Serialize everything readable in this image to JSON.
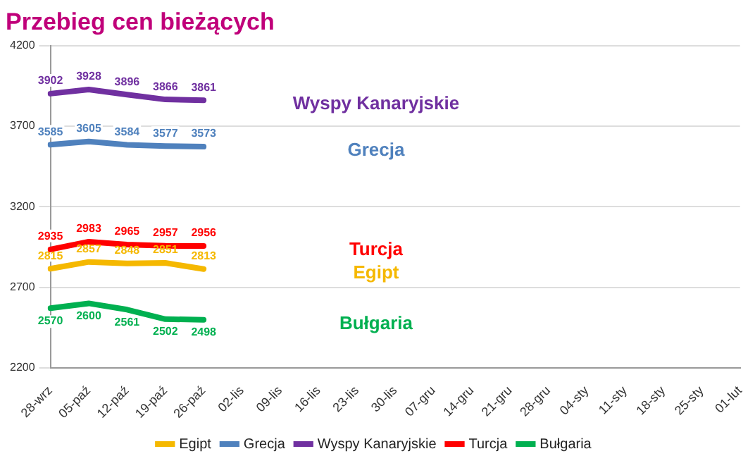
{
  "chart_data": {
    "type": "line",
    "title": "Przebieg cen bieżących",
    "categories": [
      "28-wrz",
      "05-paź",
      "12-paź",
      "19-paź",
      "26-paź",
      "02-lis",
      "09-lis",
      "16-lis",
      "23-lis",
      "30-lis",
      "07-gru",
      "14-gru",
      "21-gru",
      "28-gru",
      "04-sty",
      "11-sty",
      "18-sty",
      "25-sty",
      "01-lut"
    ],
    "series": [
      {
        "name": "Egipt",
        "color": "#f5b800",
        "values": [
          2815,
          2857,
          2848,
          2851,
          2813,
          null,
          null,
          null,
          null,
          null,
          null,
          null,
          null,
          null,
          null,
          null,
          null,
          null,
          null
        ]
      },
      {
        "name": "Grecja",
        "color": "#4f81bd",
        "values": [
          3585,
          3605,
          3584,
          3577,
          3573,
          null,
          null,
          null,
          null,
          null,
          null,
          null,
          null,
          null,
          null,
          null,
          null,
          null,
          null
        ]
      },
      {
        "name": "Wyspy Kanaryjskie",
        "color": "#7030a0",
        "values": [
          3902,
          3928,
          3896,
          3866,
          3861,
          null,
          null,
          null,
          null,
          null,
          null,
          null,
          null,
          null,
          null,
          null,
          null,
          null,
          null
        ]
      },
      {
        "name": "Turcja",
        "color": "#ff0000",
        "values": [
          2935,
          2983,
          2965,
          2957,
          2956,
          null,
          null,
          null,
          null,
          null,
          null,
          null,
          null,
          null,
          null,
          null,
          null,
          null,
          null
        ]
      },
      {
        "name": "Bułgaria",
        "color": "#00b050",
        "values": [
          2570,
          2600,
          2561,
          2502,
          2498,
          null,
          null,
          null,
          null,
          null,
          null,
          null,
          null,
          null,
          null,
          null,
          null,
          null,
          null
        ]
      }
    ],
    "ylim": [
      2200,
      4200
    ],
    "yticks": [
      2200,
      2700,
      3200,
      3700,
      4200
    ],
    "grid": "y",
    "legend": "bottom",
    "data_labels": true,
    "marker": "none",
    "line_style": "solid"
  }
}
